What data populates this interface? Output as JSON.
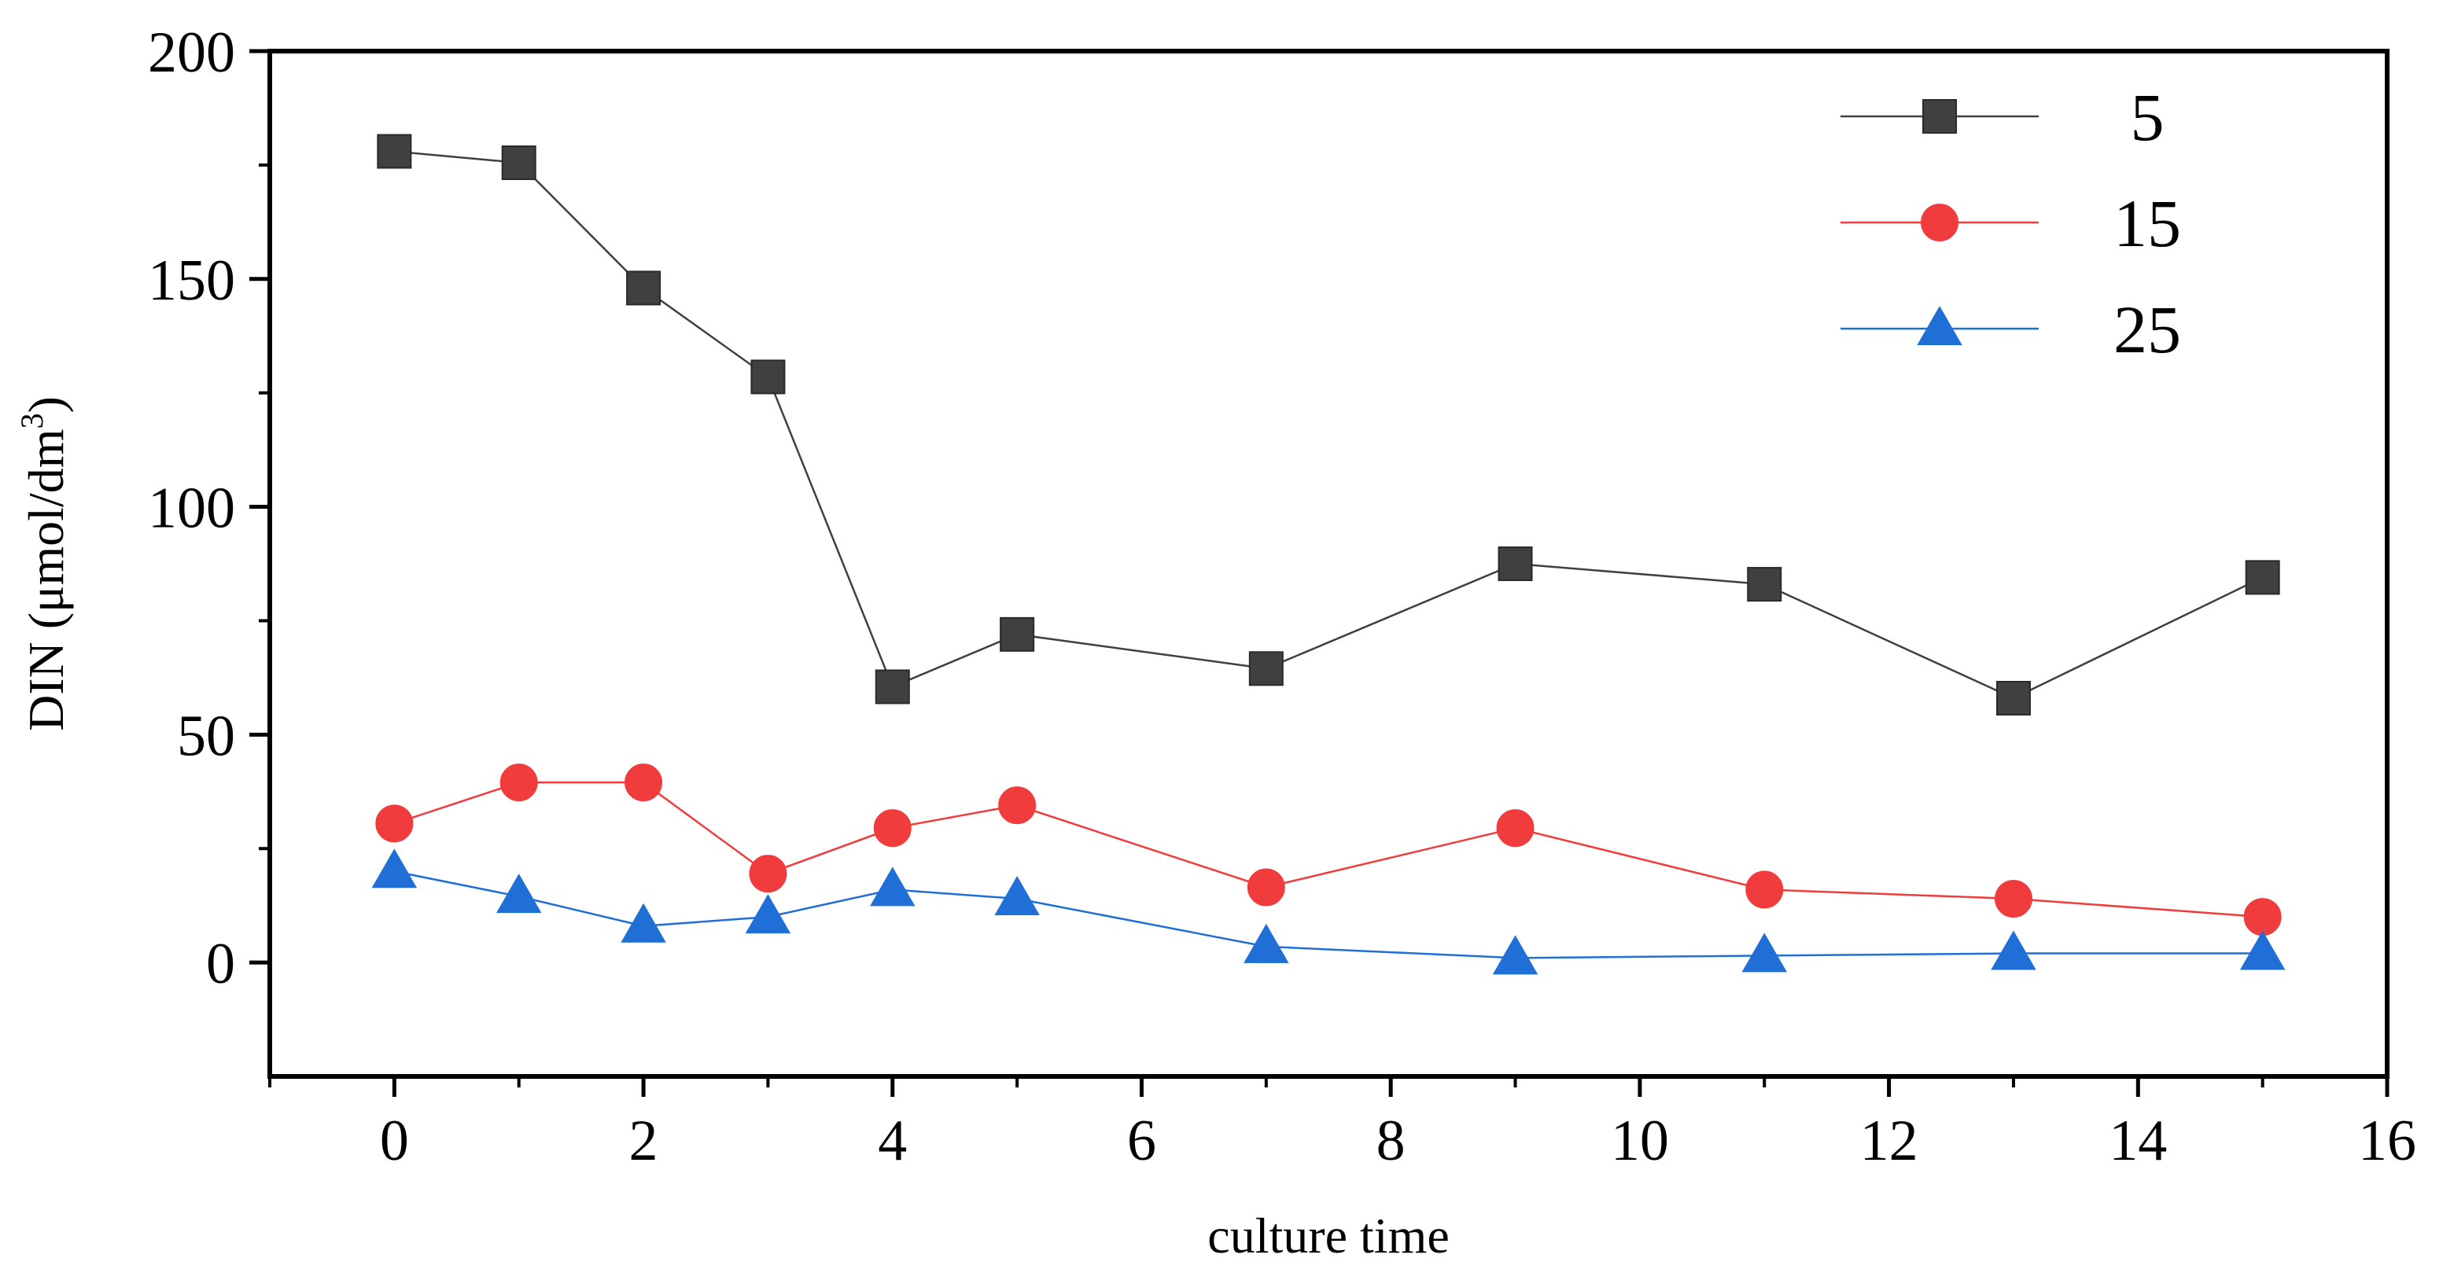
{
  "chart_data": {
    "type": "line",
    "title": "",
    "xlabel": "culture time",
    "ylabel": "DIN (μmol/dm",
    "ylabel_superscript": "3",
    "ylabel_close": ")",
    "xlim": [
      -1,
      16
    ],
    "ylim": [
      -25,
      200
    ],
    "xticks": [
      0,
      2,
      4,
      6,
      8,
      10,
      12,
      14,
      16
    ],
    "yticks": [
      0,
      50,
      100,
      150,
      200
    ],
    "legend_position": "top-right",
    "series": [
      {
        "name": "5",
        "color": "#404040",
        "marker": "square",
        "x": [
          0,
          1,
          2,
          3,
          4,
          5,
          7,
          9,
          11,
          13,
          15
        ],
        "values": [
          178,
          175.5,
          148,
          128.5,
          60.5,
          72,
          64.5,
          87.5,
          83,
          58,
          84.5
        ]
      },
      {
        "name": "15",
        "color": "#f03c3c",
        "marker": "circle",
        "x": [
          0,
          1,
          2,
          3,
          4,
          5,
          7,
          9,
          11,
          13,
          15
        ],
        "values": [
          30.5,
          39.5,
          39.5,
          19.5,
          29.5,
          34.5,
          16.5,
          29.5,
          16,
          14,
          10
        ]
      },
      {
        "name": "25",
        "color": "#1f6fd6",
        "marker": "triangle",
        "x": [
          0,
          1,
          2,
          3,
          4,
          5,
          7,
          9,
          11,
          13,
          15
        ],
        "values": [
          20,
          14.5,
          8,
          10,
          16,
          14,
          3.5,
          1,
          1.5,
          2,
          2
        ]
      }
    ]
  }
}
